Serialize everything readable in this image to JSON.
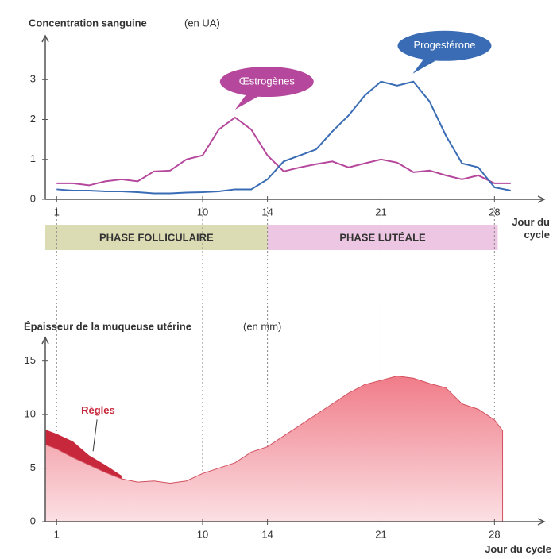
{
  "chart_data": [
    {
      "type": "line",
      "title": "Concentration sanguine",
      "title_unit": "(en UA)",
      "x_label": "Jour du cycle",
      "x": [
        1,
        2,
        3,
        4,
        5,
        6,
        7,
        8,
        9,
        10,
        11,
        12,
        13,
        14,
        15,
        16,
        17,
        18,
        19,
        20,
        21,
        22,
        23,
        24,
        25,
        26,
        27,
        28,
        29
      ],
      "series": [
        {
          "name": "Œstrogènes",
          "color": "#b5489c",
          "values": [
            0.4,
            0.4,
            0.35,
            0.45,
            0.5,
            0.45,
            0.7,
            0.72,
            1.0,
            1.1,
            1.75,
            2.05,
            1.75,
            1.1,
            0.7,
            0.8,
            0.88,
            0.95,
            0.8,
            0.9,
            1.0,
            0.92,
            0.68,
            0.72,
            0.6,
            0.5,
            0.6,
            0.4,
            0.4
          ]
        },
        {
          "name": "Progestérone",
          "color": "#3a6cb5",
          "values": [
            0.25,
            0.22,
            0.22,
            0.2,
            0.2,
            0.18,
            0.15,
            0.15,
            0.17,
            0.18,
            0.2,
            0.25,
            0.25,
            0.5,
            0.95,
            1.1,
            1.25,
            1.7,
            2.1,
            2.6,
            2.95,
            2.85,
            2.95,
            2.45,
            1.6,
            0.9,
            0.8,
            0.3,
            0.22
          ]
        }
      ],
      "phases": [
        {
          "label": "PHASE FOLLICULAIRE",
          "start": 0.3,
          "end": 14,
          "color": "#dcdcb4"
        },
        {
          "label": "PHASE LUTÉALE",
          "start": 14,
          "end": 28.2,
          "color": "#ecc6e2"
        }
      ],
      "xlim": [
        0.3,
        29.6
      ],
      "xticks": [
        1,
        10,
        14,
        21,
        28
      ],
      "ylim": [
        0,
        4.1
      ],
      "yticks": [
        0,
        1,
        2,
        3
      ]
    },
    {
      "type": "area",
      "title": "Épaisseur de la muqueuse utérine",
      "title_unit": "(en mm)",
      "x_label": "Jour du cycle",
      "series": [
        {
          "name": "Règles",
          "color": "#c8283c",
          "x": [
            0.3,
            1,
            2,
            3,
            4,
            5
          ],
          "values": [
            8.6,
            8.2,
            7.5,
            6.2,
            5.3,
            4.3
          ]
        },
        {
          "color": "#f08c96",
          "x": [
            0.3,
            1,
            2,
            3,
            4,
            5,
            6,
            7,
            8,
            9,
            10,
            11,
            12,
            13,
            14,
            15,
            16,
            17,
            18,
            19,
            20,
            21,
            22,
            23,
            24,
            25,
            26,
            27,
            28,
            28.5
          ],
          "values": [
            7.2,
            6.8,
            6.0,
            5.3,
            4.6,
            4.0,
            3.7,
            3.8,
            3.6,
            3.8,
            4.5,
            5.0,
            5.5,
            6.5,
            7.0,
            8.0,
            9.0,
            10.0,
            11.0,
            12.0,
            12.8,
            13.2,
            13.6,
            13.4,
            12.9,
            12.5,
            11.0,
            10.5,
            9.5,
            8.5
          ]
        }
      ],
      "xlim": [
        0.3,
        29.6
      ],
      "xticks": [
        1,
        10,
        14,
        21,
        28
      ],
      "ylim": [
        0,
        17.2
      ],
      "yticks": [
        0,
        5,
        10,
        15
      ]
    }
  ]
}
